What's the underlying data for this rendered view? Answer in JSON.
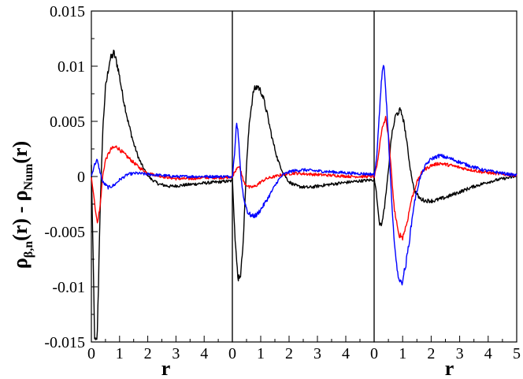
{
  "chart_data": {
    "type": "line",
    "panel_count": 3,
    "ylabel_parts": {
      "rho1": "ρ",
      "sub1": "β,n",
      "mid": "(r) - ",
      "rho2": "ρ",
      "sub2": "Num",
      "end": "(r)"
    },
    "ylim": [
      -0.015,
      0.015
    ],
    "y_ticks": [
      "-0.015",
      "-0.01",
      "-0.005",
      "0",
      "0.005",
      "0.01",
      "0.015"
    ],
    "y_tick_values": [
      -0.015,
      -0.01,
      -0.005,
      0,
      0.005,
      0.01,
      0.015
    ],
    "grid": false,
    "legend": "none",
    "colors": {
      "black": "#000000",
      "red": "#ff0000",
      "blue": "#0000ff"
    },
    "panels": [
      {
        "xlabel": "r",
        "xlim": [
          0,
          5
        ],
        "x_ticks": [
          "0",
          "1",
          "2",
          "3",
          "4"
        ],
        "x_tick_values": [
          0,
          1,
          2,
          3,
          4
        ],
        "series": [
          {
            "color": "#000000",
            "points": [
              [
                0,
                0.001
              ],
              [
                0.05,
                -0.006
              ],
              [
                0.12,
                -0.015
              ],
              [
                0.2,
                -0.015
              ],
              [
                0.25,
                -0.01
              ],
              [
                0.3,
                -0.004
              ],
              [
                0.35,
                0.0
              ],
              [
                0.4,
                0.004
              ],
              [
                0.5,
                0.008
              ],
              [
                0.65,
                0.0105
              ],
              [
                0.8,
                0.0112
              ],
              [
                0.95,
                0.0098
              ],
              [
                1.1,
                0.0075
              ],
              [
                1.3,
                0.005
              ],
              [
                1.5,
                0.003
              ],
              [
                1.7,
                0.0015
              ],
              [
                1.9,
                0.0005
              ],
              [
                2.1,
                -0.0002
              ],
              [
                2.4,
                -0.0007
              ],
              [
                2.8,
                -0.0009
              ],
              [
                3.2,
                -0.0008
              ],
              [
                3.6,
                -0.0007
              ],
              [
                4.0,
                -0.0006
              ],
              [
                4.5,
                -0.0005
              ],
              [
                5.0,
                -0.0004
              ]
            ]
          },
          {
            "color": "#ff0000",
            "points": [
              [
                0,
                0.0
              ],
              [
                0.1,
                -0.002
              ],
              [
                0.2,
                -0.0042
              ],
              [
                0.3,
                -0.003
              ],
              [
                0.4,
                0.0
              ],
              [
                0.5,
                0.0015
              ],
              [
                0.7,
                0.0025
              ],
              [
                0.9,
                0.0027
              ],
              [
                1.1,
                0.0022
              ],
              [
                1.4,
                0.0015
              ],
              [
                1.7,
                0.0008
              ],
              [
                2.0,
                0.0003
              ],
              [
                2.5,
                0.0
              ],
              [
                3.0,
                -0.0002
              ],
              [
                3.5,
                -0.0002
              ],
              [
                4.0,
                -0.0001
              ],
              [
                5.0,
                -0.0001
              ]
            ]
          },
          {
            "color": "#0000ff",
            "points": [
              [
                0,
                0.0
              ],
              [
                0.1,
                0.001
              ],
              [
                0.2,
                0.0015
              ],
              [
                0.3,
                0.0005
              ],
              [
                0.4,
                -0.0005
              ],
              [
                0.6,
                -0.001
              ],
              [
                0.8,
                -0.0008
              ],
              [
                1.0,
                -0.0003
              ],
              [
                1.3,
                0.0002
              ],
              [
                1.6,
                0.0003
              ],
              [
                2.0,
                0.0002
              ],
              [
                2.5,
                0.0001
              ],
              [
                3.0,
                0.0
              ],
              [
                4.0,
                0.0
              ],
              [
                5.0,
                0.0
              ]
            ]
          }
        ]
      },
      {
        "xlabel": "",
        "xlim": [
          0,
          5
        ],
        "x_ticks": [
          "0",
          "1",
          "2",
          "3",
          "4"
        ],
        "x_tick_values": [
          0,
          1,
          2,
          3,
          4
        ],
        "series": [
          {
            "color": "#000000",
            "points": [
              [
                0,
                0.0
              ],
              [
                0.1,
                -0.006
              ],
              [
                0.2,
                -0.0092
              ],
              [
                0.3,
                -0.0088
              ],
              [
                0.4,
                -0.005
              ],
              [
                0.5,
                0.001
              ],
              [
                0.6,
                0.005
              ],
              [
                0.75,
                0.0078
              ],
              [
                0.9,
                0.0082
              ],
              [
                1.05,
                0.0075
              ],
              [
                1.2,
                0.006
              ],
              [
                1.4,
                0.0035
              ],
              [
                1.6,
                0.0015
              ],
              [
                1.8,
                0.0003
              ],
              [
                2.0,
                -0.0005
              ],
              [
                2.3,
                -0.0009
              ],
              [
                2.7,
                -0.001
              ],
              [
                3.2,
                -0.0008
              ],
              [
                3.8,
                -0.0006
              ],
              [
                4.5,
                -0.0004
              ],
              [
                5.0,
                -0.0003
              ]
            ]
          },
          {
            "color": "#ff0000",
            "points": [
              [
                0,
                0.0
              ],
              [
                0.1,
                0.0005
              ],
              [
                0.2,
                0.001
              ],
              [
                0.3,
                0.0005
              ],
              [
                0.4,
                -0.0005
              ],
              [
                0.6,
                -0.001
              ],
              [
                0.8,
                -0.0009
              ],
              [
                1.0,
                -0.0005
              ],
              [
                1.2,
                -0.0002
              ],
              [
                1.5,
                0.0
              ],
              [
                1.8,
                0.0002
              ],
              [
                2.2,
                0.0003
              ],
              [
                2.8,
                0.0002
              ],
              [
                3.5,
                0.0001
              ],
              [
                4.2,
                0.0
              ],
              [
                5.0,
                0.0
              ]
            ]
          },
          {
            "color": "#0000ff",
            "points": [
              [
                0,
                0.0
              ],
              [
                0.08,
                0.002
              ],
              [
                0.15,
                0.005
              ],
              [
                0.22,
                0.0035
              ],
              [
                0.3,
                0.0
              ],
              [
                0.4,
                -0.002
              ],
              [
                0.55,
                -0.0033
              ],
              [
                0.7,
                -0.0036
              ],
              [
                0.85,
                -0.0035
              ],
              [
                1.0,
                -0.003
              ],
              [
                1.2,
                -0.0022
              ],
              [
                1.4,
                -0.0013
              ],
              [
                1.6,
                -0.0004
              ],
              [
                1.8,
                0.0002
              ],
              [
                2.1,
                0.0005
              ],
              [
                2.5,
                0.0006
              ],
              [
                3.0,
                0.0005
              ],
              [
                3.6,
                0.0004
              ],
              [
                4.2,
                0.0003
              ],
              [
                5.0,
                0.0002
              ]
            ]
          }
        ]
      },
      {
        "xlabel": "r",
        "xlim": [
          0,
          5
        ],
        "x_ticks": [
          "0",
          "1",
          "2",
          "3",
          "4",
          "5"
        ],
        "x_tick_values": [
          0,
          1,
          2,
          3,
          4,
          5
        ],
        "series": [
          {
            "color": "#000000",
            "points": [
              [
                0,
                0.0
              ],
              [
                0.1,
                -0.002
              ],
              [
                0.2,
                -0.0045
              ],
              [
                0.3,
                -0.004
              ],
              [
                0.4,
                -0.002
              ],
              [
                0.5,
                0.0005
              ],
              [
                0.6,
                0.0035
              ],
              [
                0.75,
                0.0055
              ],
              [
                0.9,
                0.006
              ],
              [
                1.0,
                0.0055
              ],
              [
                1.1,
                0.004
              ],
              [
                1.25,
                0.001
              ],
              [
                1.4,
                -0.0012
              ],
              [
                1.6,
                -0.002
              ],
              [
                1.8,
                -0.0022
              ],
              [
                2.1,
                -0.0022
              ],
              [
                2.5,
                -0.0019
              ],
              [
                3.0,
                -0.0014
              ],
              [
                3.5,
                -0.0009
              ],
              [
                4.0,
                -0.0005
              ],
              [
                4.5,
                -0.0002
              ],
              [
                5.0,
                0.0
              ]
            ]
          },
          {
            "color": "#ff0000",
            "points": [
              [
                0,
                0.0
              ],
              [
                0.1,
                0.001
              ],
              [
                0.2,
                0.003
              ],
              [
                0.3,
                0.0045
              ],
              [
                0.4,
                0.0053
              ],
              [
                0.5,
                0.0038
              ],
              [
                0.6,
                0.0005
              ],
              [
                0.7,
                -0.0028
              ],
              [
                0.85,
                -0.0052
              ],
              [
                1.0,
                -0.0055
              ],
              [
                1.15,
                -0.0042
              ],
              [
                1.3,
                -0.0022
              ],
              [
                1.5,
                -0.0005
              ],
              [
                1.7,
                0.0005
              ],
              [
                2.0,
                0.001
              ],
              [
                2.3,
                0.0012
              ],
              [
                2.7,
                0.001
              ],
              [
                3.2,
                0.0007
              ],
              [
                3.8,
                0.0004
              ],
              [
                4.5,
                0.0002
              ],
              [
                5.0,
                0.0001
              ]
            ]
          },
          {
            "color": "#0000ff",
            "points": [
              [
                0,
                0.0
              ],
              [
                0.1,
                0.002
              ],
              [
                0.2,
                0.0065
              ],
              [
                0.28,
                0.0095
              ],
              [
                0.35,
                0.0098
              ],
              [
                0.45,
                0.006
              ],
              [
                0.55,
                0.001
              ],
              [
                0.65,
                -0.004
              ],
              [
                0.8,
                -0.0085
              ],
              [
                0.95,
                -0.0098
              ],
              [
                1.1,
                -0.0082
              ],
              [
                1.25,
                -0.0055
              ],
              [
                1.4,
                -0.0025
              ],
              [
                1.6,
                -0.0002
              ],
              [
                1.8,
                0.001
              ],
              [
                2.0,
                0.0016
              ],
              [
                2.3,
                0.0019
              ],
              [
                2.7,
                0.0016
              ],
              [
                3.2,
                0.0011
              ],
              [
                3.8,
                0.0006
              ],
              [
                4.5,
                0.0003
              ],
              [
                5.0,
                0.0001
              ]
            ]
          }
        ]
      }
    ]
  }
}
